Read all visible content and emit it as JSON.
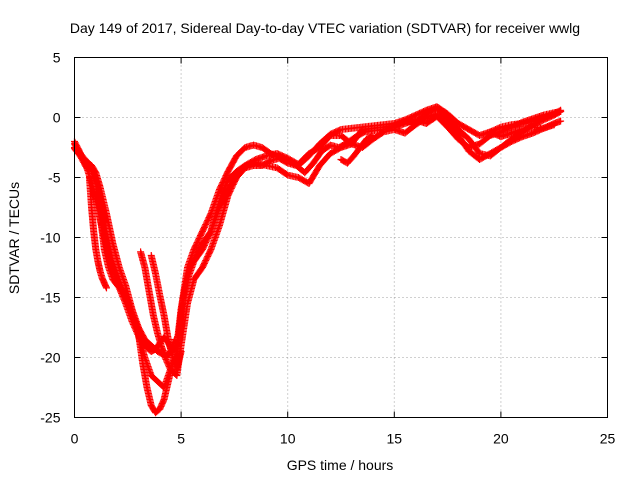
{
  "chart_data": {
    "type": "scatter",
    "title": "Day 149 of 2017, Sidereal Day-to-day VTEC variation (SDTVAR) for receiver wwlg",
    "xlabel": "GPS time / hours",
    "ylabel": "SDTVAR / TECUs",
    "xlim": [
      0,
      25
    ],
    "ylim": [
      -25,
      5
    ],
    "xticks": [
      0,
      5,
      10,
      15,
      20,
      25
    ],
    "yticks": [
      -25,
      -20,
      -15,
      -10,
      -5,
      0,
      5
    ],
    "grid": true,
    "legend": "none",
    "marker": "+",
    "color": "#ff0000",
    "series": [
      {
        "x": [
          0.0,
          0.3,
          0.6,
          0.9,
          1.2,
          1.5,
          1.8,
          2.1,
          2.4,
          2.7,
          3.0,
          3.2,
          3.4,
          3.6,
          3.8,
          4.0,
          4.2,
          4.4,
          4.6,
          4.8,
          5.0,
          5.3,
          5.6,
          6.0,
          6.4,
          6.8,
          7.2,
          7.6,
          8.0,
          8.4,
          8.8,
          9.2,
          9.6,
          10.0,
          10.4,
          10.8,
          11.2,
          11.6,
          12.0,
          12.4,
          12.8,
          13.2,
          13.6,
          14.0,
          14.5,
          15.0,
          15.5,
          16.0,
          16.5,
          17.0,
          17.5,
          18.0,
          18.5,
          19.0,
          19.5,
          20.0,
          20.5,
          21.0,
          21.5,
          22.0,
          22.5,
          22.8
        ],
        "y": [
          -2.5,
          -3.3,
          -4.3,
          -6.0,
          -8.5,
          -10.8,
          -12.8,
          -13.9,
          -14.8,
          -16.0,
          -17.5,
          -18.5,
          -19.2,
          -19.5,
          -19.3,
          -18.8,
          -18.3,
          -18.8,
          -19.5,
          -19.0,
          -16.0,
          -13.5,
          -12.0,
          -11.0,
          -9.5,
          -7.5,
          -6.0,
          -5.0,
          -4.2,
          -4.0,
          -4.0,
          -3.6,
          -3.4,
          -3.8,
          -4.0,
          -4.6,
          -3.8,
          -2.8,
          -2.3,
          -2.5,
          -2.1,
          -1.6,
          -1.2,
          -1.1,
          -1.0,
          -0.8,
          -0.5,
          -0.2,
          -0.5,
          0.1,
          -0.8,
          -1.8,
          -2.5,
          -2.2,
          -1.5,
          -1.2,
          -0.8,
          -0.4,
          -0.1,
          0.2,
          0.4,
          0.5
        ]
      },
      {
        "x": [
          0.0,
          0.2,
          0.4,
          0.6,
          0.8,
          1.0,
          1.2,
          1.5,
          1.8,
          2.1,
          2.4,
          2.7,
          3.0,
          3.2,
          3.4,
          3.6,
          3.8,
          4.0,
          4.2,
          4.4,
          4.6,
          4.8,
          5.0,
          5.3,
          5.6,
          6.0,
          6.4,
          6.8,
          7.2,
          7.6,
          8.0,
          8.4,
          8.8,
          9.2,
          9.6,
          10.0,
          10.5,
          11.0,
          11.5,
          12.0,
          12.5,
          13.0,
          13.5,
          14.0,
          14.5,
          15.0,
          15.5,
          16.0,
          16.5,
          17.0,
          17.5,
          18.0,
          18.5,
          19.0,
          19.5,
          20.0,
          20.5,
          21.0,
          21.5,
          22.0,
          22.5,
          22.8
        ],
        "y": [
          -2.2,
          -2.8,
          -3.3,
          -3.7,
          -4.0,
          -4.6,
          -5.8,
          -8.0,
          -10.5,
          -12.5,
          -14.0,
          -16.0,
          -18.0,
          -20.5,
          -22.5,
          -24.0,
          -24.6,
          -24.3,
          -23.5,
          -22.0,
          -20.5,
          -20.0,
          -16.0,
          -12.5,
          -11.0,
          -9.5,
          -8.0,
          -6.0,
          -4.5,
          -3.2,
          -2.5,
          -2.3,
          -2.5,
          -3.0,
          -3.3,
          -3.6,
          -4.0,
          -3.2,
          -2.2,
          -1.4,
          -1.0,
          -0.9,
          -0.8,
          -0.7,
          -0.6,
          -0.5,
          -0.2,
          0.2,
          0.6,
          0.9,
          0.3,
          -0.5,
          -1.0,
          -1.5,
          -1.2,
          -0.8,
          -0.6,
          -0.5,
          -0.3,
          0.0,
          0.3,
          0.6
        ]
      },
      {
        "x": [
          0.0,
          0.3,
          0.6,
          0.9,
          1.2,
          1.5,
          1.8,
          2.1,
          2.4,
          2.7,
          3.0,
          3.3,
          3.6,
          3.9,
          4.2,
          4.5,
          4.8,
          5.0,
          5.3,
          5.6,
          6.0,
          6.4,
          6.8,
          7.2,
          7.6,
          8.0,
          8.5,
          9.0,
          9.5,
          10.0,
          10.5,
          11.0,
          11.5,
          12.0,
          12.5,
          13.0,
          13.5,
          14.0,
          14.5,
          15.0,
          15.5,
          16.0,
          16.5,
          17.0,
          17.5,
          18.0,
          18.5,
          19.0,
          19.5,
          20.0,
          20.5,
          21.0,
          21.5,
          22.0,
          22.5,
          22.8
        ],
        "y": [
          -2.6,
          -3.2,
          -4.0,
          -4.5,
          -6.5,
          -9.5,
          -12.0,
          -13.5,
          -15.0,
          -16.5,
          -17.5,
          -18.5,
          -19.0,
          -19.5,
          -19.8,
          -21.0,
          -21.5,
          -19.0,
          -15.5,
          -13.5,
          -12.5,
          -11.0,
          -9.0,
          -6.5,
          -5.0,
          -4.0,
          -3.5,
          -3.2,
          -3.0,
          -3.4,
          -3.9,
          -3.0,
          -2.5,
          -1.5,
          -1.5,
          -2.2,
          -1.0,
          -0.9,
          -0.8,
          -0.7,
          -0.3,
          -0.4,
          0.3,
          0.8,
          0.0,
          -1.0,
          -1.8,
          -3.0,
          -3.2,
          -2.5,
          -1.8,
          -1.2,
          -0.6,
          -0.2,
          0.2,
          0.5
        ]
      },
      {
        "x": [
          0.0,
          0.2,
          0.4,
          0.6,
          0.8,
          1.0,
          1.2,
          1.4,
          1.6,
          1.8,
          2.1,
          2.4,
          2.7,
          3.0,
          3.3,
          3.6,
          3.9,
          4.2,
          4.5,
          4.8,
          5.1,
          5.4,
          5.7,
          6.0,
          6.4,
          6.8,
          7.2,
          7.6,
          8.0,
          8.5,
          9.0,
          9.5,
          10.0,
          10.5,
          11.0,
          11.5,
          12.0,
          12.5,
          13.0,
          13.5,
          14.0,
          14.5,
          15.0,
          15.5,
          16.0,
          16.5,
          17.0,
          17.5,
          18.0,
          18.5,
          19.0,
          19.5,
          20.0,
          20.5,
          21.0,
          21.5,
          22.0,
          22.5,
          22.8
        ],
        "y": [
          -2.0,
          -2.7,
          -3.5,
          -4.2,
          -4.3,
          -5.5,
          -8.0,
          -11.0,
          -12.5,
          -13.5,
          -14.2,
          -15.5,
          -17.0,
          -18.2,
          -20.0,
          -21.5,
          -22.0,
          -22.5,
          -21.0,
          -19.5,
          -15.0,
          -12.5,
          -11.5,
          -10.5,
          -9.5,
          -7.0,
          -5.2,
          -4.5,
          -4.0,
          -3.8,
          -4.0,
          -4.2,
          -4.8,
          -5.0,
          -5.5,
          -4.0,
          -3.0,
          -2.5,
          -2.2,
          -2.5,
          -1.8,
          -1.2,
          -1.0,
          -1.3,
          -0.6,
          0.0,
          0.3,
          -0.5,
          -1.5,
          -2.8,
          -3.5,
          -3.0,
          -2.5,
          -2.0,
          -1.6,
          -1.3,
          -0.9,
          -0.5,
          -0.3
        ]
      },
      {
        "x": [
          0.7,
          0.8,
          0.9,
          1.0,
          1.1,
          1.2,
          1.3,
          1.4,
          1.5
        ],
        "y": [
          -5.0,
          -7.5,
          -9.5,
          -11.0,
          -12.0,
          -12.8,
          -13.4,
          -13.8,
          -14.2
        ]
      },
      {
        "x": [
          3.1,
          3.3,
          3.5,
          3.7,
          3.9,
          4.1,
          4.3,
          4.5,
          4.7
        ],
        "y": [
          -11.2,
          -12.5,
          -14.5,
          -16.5,
          -18.0,
          -19.2,
          -20.0,
          -19.5,
          -18.5
        ]
      },
      {
        "x": [
          3.6,
          3.8,
          4.0,
          4.2,
          4.4,
          4.6,
          4.8,
          5.0
        ],
        "y": [
          -11.5,
          -13.0,
          -14.8,
          -16.5,
          -18.5,
          -20.0,
          -21.0,
          -19.5
        ]
      },
      {
        "x": [
          19.5,
          20.0,
          20.5,
          21.0,
          21.5,
          22.0,
          22.5
        ],
        "y": [
          -1.2,
          -1.6,
          -1.3,
          -1.0,
          -0.8,
          -0.9,
          -0.6
        ]
      },
      {
        "x": [
          12.5,
          12.8,
          13.1,
          13.4,
          13.7,
          14.0
        ],
        "y": [
          -3.5,
          -3.8,
          -3.2,
          -2.5,
          -1.8,
          -1.5
        ]
      }
    ]
  }
}
